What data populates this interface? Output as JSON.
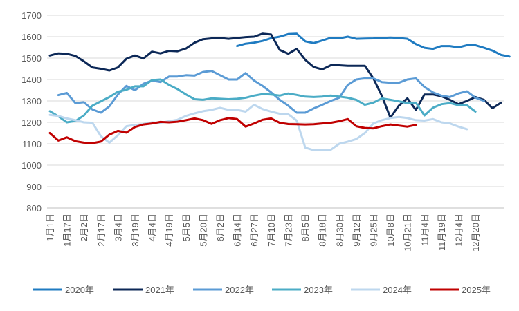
{
  "chart_data": {
    "type": "line",
    "title": "",
    "xlabel": "",
    "ylabel": "",
    "ylim": [
      800,
      1700
    ],
    "yticks": [
      800,
      900,
      1000,
      1100,
      1200,
      1300,
      1400,
      1500,
      1600,
      1700
    ],
    "grid": true,
    "legend_position": "bottom",
    "x_tick_labels": [
      "1月1日",
      "1月17日",
      "2月2日",
      "2月17日",
      "3月4日",
      "3月19日",
      "4月4日",
      "4月19日",
      "5月5日",
      "5月20日",
      "6月2日",
      "6月14日",
      "6月27日",
      "7月10日",
      "7月23日",
      "8月5日",
      "8月18日",
      "8月30日",
      "9月12日",
      "9月25日",
      "10月8日",
      "10月21日",
      "11月4日",
      "11月19日",
      "12月4日",
      "12月20日"
    ],
    "series": [
      {
        "name": "2020年",
        "color": "#1f7bc1",
        "start": 22,
        "values": [
          1556,
          1567,
          1572,
          1580,
          1593,
          1600,
          1612,
          1614,
          1578,
          1570,
          1582,
          1595,
          1592,
          1600,
          1590,
          1591,
          1592,
          1594,
          1596,
          1594,
          1590,
          1565,
          1548,
          1543,
          1556,
          1556,
          1550,
          1560,
          1560,
          1548,
          1535,
          1515,
          1507
        ]
      },
      {
        "name": "2021年",
        "color": "#0c2857",
        "start": 0,
        "values": [
          1512,
          1522,
          1520,
          1510,
          1485,
          1456,
          1450,
          1442,
          1456,
          1497,
          1512,
          1498,
          1530,
          1522,
          1534,
          1532,
          1545,
          1572,
          1588,
          1592,
          1594,
          1590,
          1594,
          1598,
          1600,
          1614,
          1610,
          1538,
          1520,
          1543,
          1492,
          1458,
          1447,
          1466,
          1466,
          1464,
          1464,
          1464,
          1405,
          1324,
          1222,
          1278,
          1312,
          1258,
          1330,
          1330,
          1322,
          1305,
          1285,
          1300,
          1318,
          1305,
          1266,
          1292
        ]
      },
      {
        "name": "2022年",
        "color": "#5b9bd5",
        "start": 1,
        "values": [
          1327,
          1337,
          1290,
          1294,
          1260,
          1245,
          1275,
          1330,
          1370,
          1350,
          1380,
          1395,
          1388,
          1414,
          1414,
          1420,
          1418,
          1435,
          1440,
          1420,
          1400,
          1400,
          1430,
          1395,
          1370,
          1340,
          1305,
          1278,
          1245,
          1245,
          1265,
          1282,
          1300,
          1315,
          1375,
          1400,
          1405,
          1405,
          1388,
          1385,
          1385,
          1400,
          1405,
          1365,
          1340,
          1325,
          1318,
          1335,
          1345,
          1315,
          1300
        ]
      },
      {
        "name": "2023年",
        "color": "#4bacc6",
        "start": 0,
        "values": [
          1252,
          1228,
          1200,
          1206,
          1232,
          1278,
          1298,
          1318,
          1343,
          1352,
          1368,
          1368,
          1397,
          1400,
          1375,
          1355,
          1330,
          1308,
          1305,
          1312,
          1310,
          1308,
          1310,
          1315,
          1325,
          1332,
          1330,
          1325,
          1335,
          1328,
          1320,
          1318,
          1320,
          1325,
          1320,
          1315,
          1305,
          1282,
          1292,
          1312,
          1305,
          1298,
          1290,
          1292,
          1232,
          1268,
          1285,
          1290,
          1280,
          1280,
          1250
        ]
      },
      {
        "name": "2024年",
        "color": "#bdd7ee",
        "start": 0,
        "values": [
          1235,
          1230,
          1218,
          1210,
          1200,
          1198,
          1135,
          1105,
          1140,
          1182,
          1188,
          1192,
          1200,
          1198,
          1205,
          1212,
          1230,
          1242,
          1252,
          1258,
          1268,
          1258,
          1258,
          1250,
          1282,
          1262,
          1250,
          1240,
          1238,
          1208,
          1082,
          1070,
          1070,
          1072,
          1100,
          1110,
          1122,
          1150,
          1195,
          1210,
          1220,
          1225,
          1220,
          1210,
          1208,
          1215,
          1200,
          1195,
          1180,
          1168
        ]
      },
      {
        "name": "2025年",
        "color": "#c00000",
        "start": 0,
        "values": [
          1150,
          1115,
          1130,
          1112,
          1105,
          1103,
          1110,
          1143,
          1160,
          1152,
          1178,
          1190,
          1195,
          1202,
          1200,
          1203,
          1210,
          1218,
          1210,
          1193,
          1210,
          1220,
          1215,
          1180,
          1195,
          1212,
          1218,
          1198,
          1192,
          1191,
          1190,
          1191,
          1195,
          1198,
          1205,
          1215,
          1182,
          1174,
          1172,
          1182,
          1190,
          1185,
          1180,
          1188
        ]
      }
    ]
  }
}
